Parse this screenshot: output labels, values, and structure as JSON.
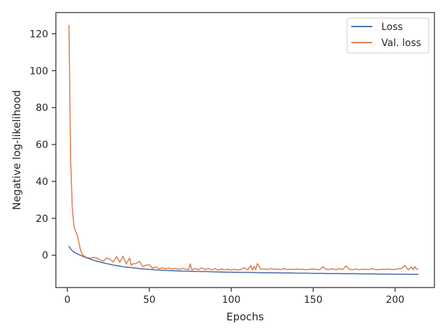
{
  "chart_data": {
    "type": "line",
    "title": "",
    "xlabel": "Epochs",
    "ylabel": "Negative log-likelihood",
    "xlim": [
      -7,
      224
    ],
    "ylim": [
      -17.5,
      131.5
    ],
    "xticks": [
      0,
      50,
      100,
      150,
      200
    ],
    "yticks": [
      0,
      20,
      40,
      60,
      80,
      100,
      120
    ],
    "grid": false,
    "legend_position": "top-right",
    "series": [
      {
        "name": "Loss",
        "color": "#4c72b0",
        "x": [
          1,
          2,
          3,
          4,
          5,
          6,
          7,
          8,
          9,
          10,
          12,
          14,
          16,
          18,
          20,
          22,
          24,
          26,
          28,
          30,
          32,
          34,
          36,
          38,
          40,
          45,
          50,
          55,
          60,
          65,
          70,
          75,
          80,
          85,
          90,
          95,
          100,
          105,
          110,
          115,
          120,
          125,
          130,
          135,
          140,
          145,
          150,
          155,
          160,
          165,
          170,
          175,
          180,
          185,
          190,
          195,
          200,
          205,
          210,
          214
        ],
        "y": [
          4.8,
          3.5,
          2.5,
          1.8,
          1.2,
          0.8,
          0.4,
          0,
          -0.4,
          -0.8,
          -1.5,
          -2.1,
          -2.7,
          -3.2,
          -3.7,
          -4.1,
          -4.5,
          -4.9,
          -5.3,
          -5.6,
          -5.9,
          -6.2,
          -6.4,
          -6.6,
          -6.8,
          -7.3,
          -7.7,
          -8.0,
          -8.2,
          -8.4,
          -8.6,
          -8.7,
          -8.8,
          -8.9,
          -9.0,
          -9.1,
          -9.2,
          -9.3,
          -9.3,
          -9.4,
          -9.5,
          -9.5,
          -9.6,
          -9.6,
          -9.7,
          -9.7,
          -9.8,
          -9.8,
          -9.9,
          -9.9,
          -10.0,
          -10.0,
          -10.1,
          -10.1,
          -10.2,
          -10.2,
          -10.3,
          -10.3,
          -10.4,
          -10.3
        ]
      },
      {
        "name": "Val. loss",
        "color": "#dd8452",
        "x": [
          1,
          2,
          3,
          4,
          5,
          6,
          7,
          8,
          9,
          10,
          11,
          12,
          14,
          16,
          18,
          20,
          22,
          24,
          26,
          28,
          30,
          32,
          34,
          36,
          38,
          39,
          40,
          42,
          44,
          46,
          48,
          50,
          52,
          54,
          56,
          58,
          60,
          62,
          64,
          66,
          68,
          70,
          72,
          74,
          75,
          76,
          78,
          80,
          82,
          84,
          86,
          88,
          90,
          92,
          94,
          96,
          98,
          100,
          102,
          104,
          106,
          108,
          110,
          112,
          113,
          114,
          115,
          116,
          118,
          120,
          122,
          124,
          126,
          128,
          130,
          132,
          134,
          136,
          138,
          140,
          142,
          144,
          146,
          148,
          150,
          152,
          154,
          156,
          158,
          160,
          162,
          164,
          166,
          168,
          170,
          172,
          174,
          176,
          178,
          180,
          182,
          184,
          186,
          188,
          190,
          192,
          194,
          196,
          198,
          200,
          202,
          204,
          206,
          208,
          209,
          210,
          211,
          212,
          213,
          214
        ],
        "y": [
          124.5,
          52,
          26,
          16,
          13,
          11,
          7,
          3,
          0.8,
          -0.3,
          -0.8,
          -1.2,
          -1.6,
          -1.2,
          -1.5,
          -2.5,
          -3.2,
          -1.5,
          -2.2,
          -3.6,
          -0.8,
          -3.8,
          -0.5,
          -4.8,
          -1.5,
          -5.5,
          -4.6,
          -4.5,
          -3.3,
          -6.2,
          -5.4,
          -5.2,
          -7.1,
          -6.3,
          -7.4,
          -6.8,
          -7.3,
          -6.9,
          -7.5,
          -7.1,
          -7.6,
          -7.2,
          -7.5,
          -7.8,
          -4.6,
          -8.0,
          -7.1,
          -7.9,
          -6.9,
          -7.8,
          -7.2,
          -7.9,
          -7.3,
          -8.0,
          -7.4,
          -7.9,
          -7.6,
          -8.0,
          -7.6,
          -8.0,
          -7.7,
          -6.8,
          -8.0,
          -5.6,
          -8.0,
          -6.0,
          -7.8,
          -4.5,
          -7.6,
          -7.4,
          -7.7,
          -7.2,
          -7.6,
          -7.5,
          -7.8,
          -7.3,
          -7.7,
          -7.6,
          -7.8,
          -7.4,
          -7.7,
          -7.6,
          -7.9,
          -7.6,
          -7.4,
          -7.7,
          -7.8,
          -6.2,
          -7.7,
          -7.7,
          -7.3,
          -7.9,
          -7.2,
          -7.8,
          -5.8,
          -7.6,
          -7.8,
          -7.4,
          -7.9,
          -7.5,
          -7.7,
          -7.7,
          -7.3,
          -7.8,
          -7.8,
          -7.6,
          -7.7,
          -7.4,
          -7.8,
          -7.6,
          -7.4,
          -7.2,
          -5.5,
          -7.9,
          -7.0,
          -6.4,
          -7.8,
          -6.2,
          -7.6,
          -7.3
        ]
      }
    ]
  }
}
